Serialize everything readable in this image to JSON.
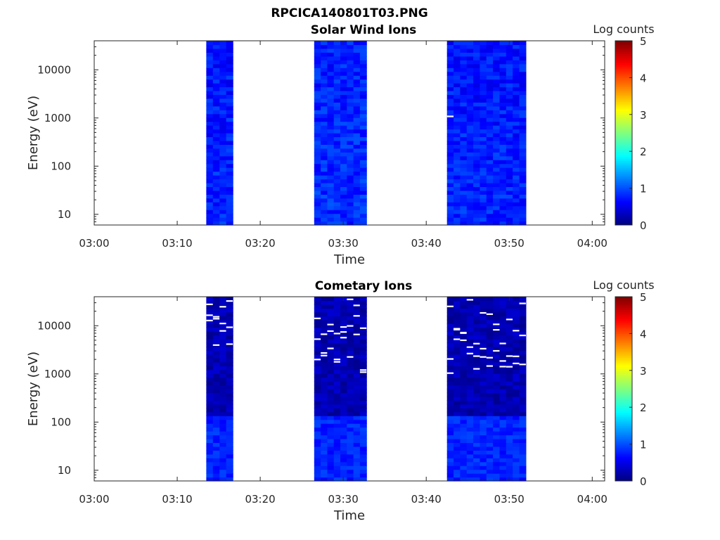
{
  "figure": {
    "title": "RPCICA140801T03.PNG"
  },
  "chart_data": [
    {
      "type": "heatmap",
      "title": "Solar Wind Ions",
      "xlabel": "Time",
      "ylabel": "Energy (eV)",
      "x_ticks": [
        "03:00",
        "03:10",
        "03:20",
        "03:30",
        "03:40",
        "03:50",
        "04:00"
      ],
      "x_range_minutes": [
        0,
        61.5
      ],
      "y_scale": "log",
      "y_ticks": [
        {
          "value": 10,
          "label": "10"
        },
        {
          "value": 100,
          "label": "100"
        },
        {
          "value": 1000,
          "label": "1000"
        },
        {
          "value": 10000,
          "label": "10000"
        }
      ],
      "y_range": [
        6,
        40000
      ],
      "colorbar": {
        "label": "Log counts",
        "range": [
          0,
          5
        ],
        "ticks": [
          "0",
          "1",
          "2",
          "3",
          "4",
          "5"
        ],
        "colormap": "jet"
      },
      "data_blocks": [
        {
          "start": "03:13.5",
          "end": "03:16.7",
          "typical_log_counts": 0.8
        },
        {
          "start": "03:26.5",
          "end": "03:32.8",
          "typical_log_counts": 0.85
        },
        {
          "start": "03:42.5",
          "end": "03:52.0",
          "typical_log_counts": 0.8
        }
      ],
      "grid": false,
      "seed": 11
    },
    {
      "type": "heatmap",
      "title": "Cometary Ions",
      "xlabel": "Time",
      "ylabel": "Energy (eV)",
      "x_ticks": [
        "03:00",
        "03:10",
        "03:20",
        "03:30",
        "03:40",
        "03:50",
        "04:00"
      ],
      "x_range_minutes": [
        0,
        61.5
      ],
      "y_scale": "log",
      "y_ticks": [
        {
          "value": 10,
          "label": "10"
        },
        {
          "value": 100,
          "label": "100"
        },
        {
          "value": 1000,
          "label": "1000"
        },
        {
          "value": 10000,
          "label": "10000"
        }
      ],
      "y_range": [
        6,
        40000
      ],
      "colorbar": {
        "label": "Log counts",
        "range": [
          0,
          5
        ],
        "ticks": [
          "0",
          "1",
          "2",
          "3",
          "4",
          "5"
        ],
        "colormap": "jet"
      },
      "data_blocks": [
        {
          "start": "03:13.5",
          "end": "03:16.7",
          "typical_log_counts": 0.3
        },
        {
          "start": "03:26.5",
          "end": "03:32.8",
          "typical_log_counts": 0.3
        },
        {
          "start": "03:42.5",
          "end": "03:52.0",
          "typical_log_counts": 0.3
        }
      ],
      "grid": false,
      "seed": 29
    }
  ]
}
